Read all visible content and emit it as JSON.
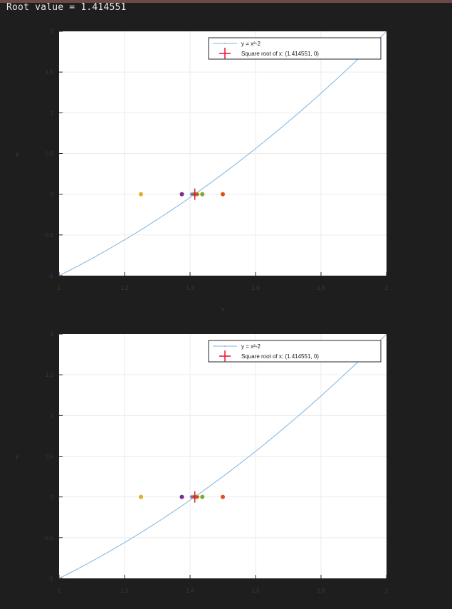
{
  "console": {
    "output_text": "Root value = 1.414551"
  },
  "colors": {
    "background": "#1e1e1e",
    "axes_face": "#ffffff",
    "grid": "#ebebeb",
    "curve": "#7fb4e0",
    "root_marker": "#e8112d",
    "iter_yellow": "#e0b020",
    "iter_purple": "#7a2e8e",
    "iter_orange": "#d95319",
    "iter_green": "#77ac30"
  },
  "plots": [
    {
      "chart_data": {
        "type": "scatter",
        "xlim": [
          1,
          2
        ],
        "ylim": [
          -1,
          2
        ],
        "x_ticks": [
          1,
          1.2,
          1.4,
          1.6,
          1.8,
          2
        ],
        "x_tick_labels": [
          "1",
          "1.2",
          "1.4",
          "1.6",
          "1.8",
          "2"
        ],
        "y_ticks": [
          -1,
          -0.5,
          0,
          0.5,
          1,
          1.5,
          2
        ],
        "y_tick_labels": [
          "-1",
          "-0.5",
          "0",
          "0.5",
          "1",
          "1.5",
          "2"
        ],
        "xlabel": "x",
        "ylabel": "y",
        "grid": true,
        "legend_position": "top-right",
        "series": [
          {
            "name": "y = x²-2",
            "kind": "line",
            "function": "x^2-2",
            "color": "#7fb4e0"
          },
          {
            "name": "Square root of x: (1.414551, 0)",
            "kind": "marker",
            "marker": "plus",
            "x": [
              1.414551
            ],
            "y": [
              0
            ],
            "color": "#e8112d"
          }
        ],
        "iterates": [
          {
            "x": 1.25,
            "y": 0,
            "color": "#e0b020"
          },
          {
            "x": 1.375,
            "y": 0,
            "color": "#7a2e8e"
          },
          {
            "x": 1.5,
            "y": 0,
            "color": "#d95319"
          },
          {
            "x": 1.4375,
            "y": 0,
            "color": "#77ac30"
          },
          {
            "x": 1.40625,
            "y": 0,
            "color": "#7fb4e0"
          },
          {
            "x": 1.421875,
            "y": 0,
            "color": "#e0b020"
          },
          {
            "x": 1.4140625,
            "y": 0,
            "color": "#7a2e8e"
          },
          {
            "x": 1.41796875,
            "y": 0,
            "color": "#d95319"
          },
          {
            "x": 1.416015625,
            "y": 0,
            "color": "#77ac30"
          },
          {
            "x": 1.4150390625,
            "y": 0,
            "color": "#7fb4e0"
          },
          {
            "x": 1.41455078125,
            "y": 0,
            "color": "#77ac30"
          }
        ]
      }
    },
    {
      "chart_data": {
        "type": "scatter",
        "xlim": [
          1,
          2
        ],
        "ylim": [
          -1,
          2
        ],
        "x_ticks": [
          1,
          1.2,
          1.4,
          1.6,
          1.8,
          2
        ],
        "x_tick_labels": [
          "1",
          "1.2",
          "1.4",
          "1.6",
          "1.8",
          "2"
        ],
        "y_ticks": [
          -1,
          -0.5,
          0,
          0.5,
          1,
          1.5,
          2
        ],
        "y_tick_labels": [
          "-1",
          "-0.5",
          "0",
          "0.5",
          "1",
          "1.5",
          "2"
        ],
        "xlabel": "",
        "ylabel": "y",
        "grid": true,
        "legend_position": "top-right",
        "series": [
          {
            "name": "y = x²-2",
            "kind": "line",
            "function": "x^2-2",
            "color": "#7fb4e0"
          },
          {
            "name": "Square root of x: (1.414551, 0)",
            "kind": "marker",
            "marker": "plus",
            "x": [
              1.414551
            ],
            "y": [
              0
            ],
            "color": "#e8112d"
          }
        ],
        "iterates": [
          {
            "x": 1.25,
            "y": 0,
            "color": "#e0b020"
          },
          {
            "x": 1.375,
            "y": 0,
            "color": "#7a2e8e"
          },
          {
            "x": 1.5,
            "y": 0,
            "color": "#d95319"
          },
          {
            "x": 1.4375,
            "y": 0,
            "color": "#77ac30"
          },
          {
            "x": 1.40625,
            "y": 0,
            "color": "#7fb4e0"
          },
          {
            "x": 1.421875,
            "y": 0,
            "color": "#e0b020"
          },
          {
            "x": 1.4140625,
            "y": 0,
            "color": "#7a2e8e"
          },
          {
            "x": 1.41796875,
            "y": 0,
            "color": "#d95319"
          },
          {
            "x": 1.416015625,
            "y": 0,
            "color": "#77ac30"
          },
          {
            "x": 1.4150390625,
            "y": 0,
            "color": "#7fb4e0"
          },
          {
            "x": 1.41455078125,
            "y": 0,
            "color": "#77ac30"
          }
        ]
      }
    }
  ]
}
